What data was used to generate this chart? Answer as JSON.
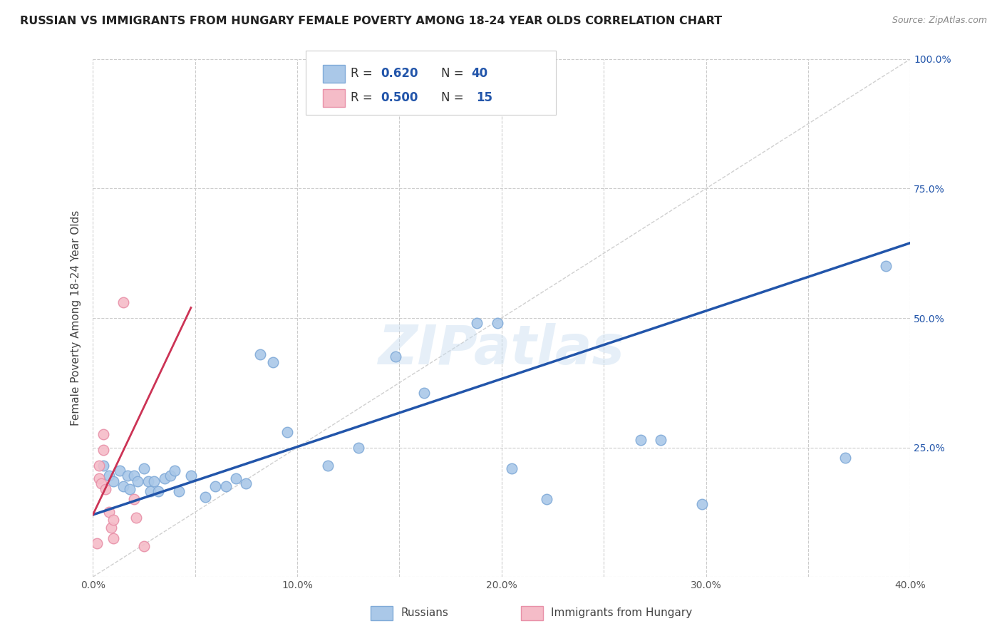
{
  "title": "RUSSIAN VS IMMIGRANTS FROM HUNGARY FEMALE POVERTY AMONG 18-24 YEAR OLDS CORRELATION CHART",
  "source": "Source: ZipAtlas.com",
  "ylabel": "Female Poverty Among 18-24 Year Olds",
  "xlim": [
    0.0,
    0.4
  ],
  "ylim": [
    0.0,
    1.0
  ],
  "xticks": [
    0.0,
    0.1,
    0.2,
    0.3,
    0.4
  ],
  "yticks": [
    0.0,
    0.25,
    0.5,
    0.75,
    1.0
  ],
  "ytick_labels_right": [
    "",
    "25.0%",
    "50.0%",
    "75.0%",
    "100.0%"
  ],
  "xtick_labels": [
    "0.0%",
    "",
    "10.0%",
    "",
    "20.0%",
    "",
    "30.0%",
    "",
    "40.0%"
  ],
  "xtick_positions": [
    0.0,
    0.05,
    0.1,
    0.15,
    0.2,
    0.25,
    0.3,
    0.35,
    0.4
  ],
  "russian_color": "#aac8e8",
  "hungary_color": "#f5bcc8",
  "russian_edge": "#80aad8",
  "hungary_edge": "#e890a8",
  "blue_line_color": "#2255aa",
  "pink_line_color": "#cc3355",
  "diagonal_color": "#d0d0d0",
  "legend_label1": "Russians",
  "legend_label2": "Immigrants from Hungary",
  "blue_line_x": [
    0.0,
    0.4
  ],
  "blue_line_y": [
    0.12,
    0.645
  ],
  "pink_line_x": [
    0.0,
    0.048
  ],
  "pink_line_y": [
    0.12,
    0.52
  ],
  "russian_x": [
    0.005,
    0.008,
    0.01,
    0.013,
    0.015,
    0.017,
    0.018,
    0.02,
    0.022,
    0.025,
    0.027,
    0.028,
    0.03,
    0.032,
    0.035,
    0.038,
    0.04,
    0.042,
    0.048,
    0.055,
    0.06,
    0.065,
    0.07,
    0.075,
    0.082,
    0.088,
    0.095,
    0.115,
    0.13,
    0.148,
    0.162,
    0.188,
    0.198,
    0.205,
    0.222,
    0.268,
    0.278,
    0.298,
    0.368,
    0.388
  ],
  "russian_y": [
    0.215,
    0.195,
    0.185,
    0.205,
    0.175,
    0.195,
    0.17,
    0.195,
    0.185,
    0.21,
    0.185,
    0.165,
    0.185,
    0.165,
    0.19,
    0.195,
    0.205,
    0.165,
    0.195,
    0.155,
    0.175,
    0.175,
    0.19,
    0.18,
    0.43,
    0.415,
    0.28,
    0.215,
    0.25,
    0.425,
    0.355,
    0.49,
    0.49,
    0.21,
    0.15,
    0.265,
    0.265,
    0.14,
    0.23,
    0.6
  ],
  "hungary_x": [
    0.002,
    0.003,
    0.003,
    0.004,
    0.005,
    0.005,
    0.006,
    0.008,
    0.009,
    0.01,
    0.01,
    0.015,
    0.02,
    0.021,
    0.025
  ],
  "hungary_y": [
    0.065,
    0.215,
    0.19,
    0.18,
    0.275,
    0.245,
    0.17,
    0.125,
    0.095,
    0.11,
    0.075,
    0.53,
    0.15,
    0.115,
    0.06
  ],
  "watermark": "ZIPatlas",
  "background_color": "#ffffff",
  "grid_color": "#cccccc",
  "title_fontsize": 11.5,
  "axis_label_fontsize": 11,
  "tick_fontsize": 10,
  "marker_size": 110
}
